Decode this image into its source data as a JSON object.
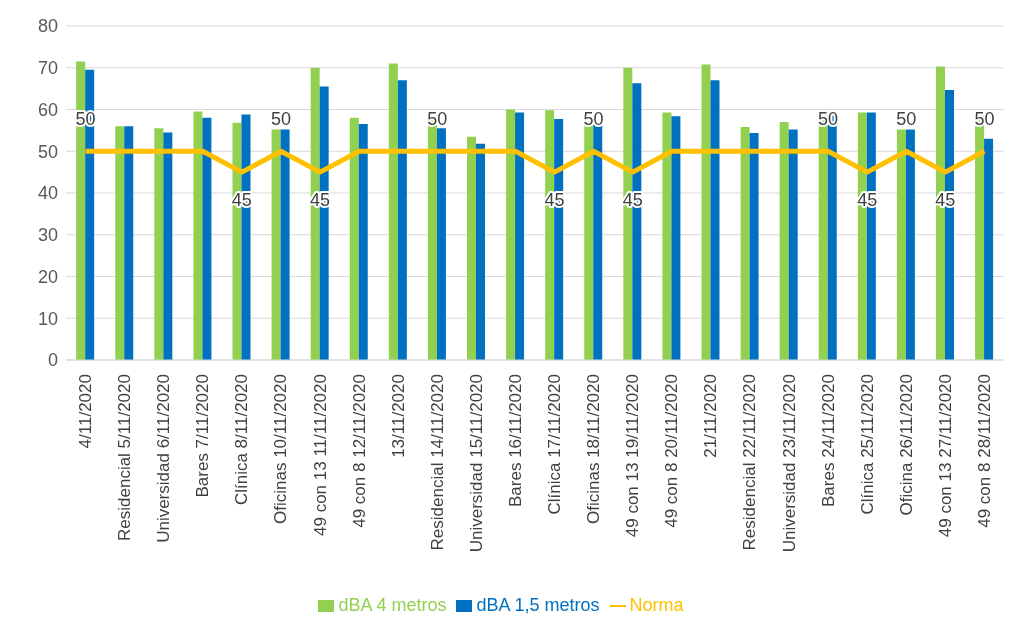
{
  "chart_data": {
    "type": "bar",
    "categories": [
      "4/11/2020",
      "Residencial 5/11/2020",
      "Universidad 6/11/2020",
      "Bares 7/11/2020",
      "Clínica 8/11/2020",
      "Oficinas 10/11/2020",
      "49 con 13 11/11/2020",
      "49 con 8 12/11/2020",
      "13/11/2020",
      "Residencial 14/11/2020",
      "Universidad 15/11/2020",
      "Bares 16/11/2020",
      "Clínica 17/11/2020",
      "Oficinas 18/11/2020",
      "49 con 13 19/11/2020",
      "49 con 8 20/11/2020",
      "21/11/2020",
      "Residencial 22/11/2020",
      "Universidad 23/11/2020",
      "Bares 24/11/2020",
      "Clínica 25/11/2020",
      "Oficina 26/11/2020",
      "49 con 13 27/11/2020",
      "49 con 8 28/11/2020"
    ],
    "series": [
      {
        "name": "dBA 4 metros",
        "color": "#92d050",
        "values": [
          71.5,
          56,
          55.5,
          59.5,
          56.8,
          55.2,
          70,
          58,
          71,
          59.5,
          53.5,
          60,
          59.8,
          57,
          70,
          59.3,
          70.8,
          55.8,
          57,
          59.8,
          59.3,
          55.2,
          70.3,
          59.2
        ]
      },
      {
        "name": "dBA 1,5 metros",
        "color": "#0070c0",
        "values": [
          69.5,
          56,
          54.5,
          58,
          58.8,
          55.2,
          65.5,
          56.5,
          67,
          55.5,
          51.8,
          59.3,
          57.7,
          57,
          66.3,
          58.4,
          67,
          54.4,
          55.2,
          58.9,
          59.3,
          55.2,
          64.7,
          53
        ]
      },
      {
        "name": "Norma",
        "type": "line",
        "color": "#ffc000",
        "values": [
          50,
          50,
          50,
          50,
          45,
          50,
          45,
          50,
          50,
          50,
          50,
          50,
          45,
          50,
          45,
          50,
          50,
          50,
          50,
          50,
          45,
          50,
          45,
          50
        ],
        "value_labels": [
          "50",
          null,
          null,
          null,
          "45",
          "50",
          "45",
          null,
          null,
          "50",
          null,
          null,
          "45",
          "50",
          "45",
          null,
          null,
          null,
          null,
          "50",
          "45",
          "50",
          "45",
          "50"
        ]
      }
    ],
    "ylim": [
      0,
      80
    ],
    "yticks": [
      0,
      10,
      20,
      30,
      40,
      50,
      60,
      70,
      80
    ],
    "grid": "y",
    "legend": "bottom",
    "marker": "none"
  }
}
